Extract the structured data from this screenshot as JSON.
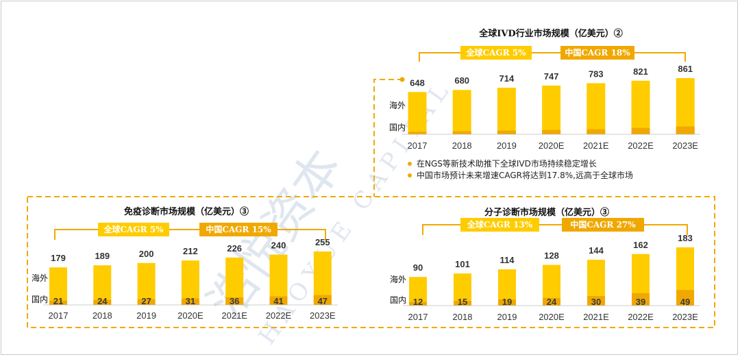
{
  "colors": {
    "bar_overseas": "#FFCC00",
    "bar_domestic": "#F0A800",
    "cagr_global_box": "#FFCC00",
    "cagr_china_box": "#F0A800",
    "bracket_line": "#F0A800",
    "dashed_frame": "#F0A800"
  },
  "legend": {
    "overseas": "海外",
    "domestic": "国内"
  },
  "notes": [
    "在NGS等新技术助推下全球IVD市场持续稳定增长",
    "中国市场预计未来增速CAGR将达到17.8%,远高于全球市场"
  ],
  "watermark": {
    "cn": "浩悦资本",
    "en": "HAOYUE CAPITAL"
  },
  "chart_data": [
    {
      "id": "ivd",
      "type": "bar",
      "title": "全球IVD行业市场规模（亿美元）②",
      "categories": [
        "2017",
        "2018",
        "2019",
        "2020E",
        "2021E",
        "2022E",
        "2023E"
      ],
      "totals": [
        648,
        680,
        714,
        747,
        783,
        821,
        861
      ],
      "domestic": [
        null,
        null,
        null,
        null,
        null,
        null,
        null
      ],
      "domestic_shown": [
        null,
        null,
        null,
        null,
        null,
        null,
        null
      ],
      "domestic_fraction": [
        0.06,
        0.07,
        0.08,
        0.09,
        0.1,
        0.12,
        0.14
      ],
      "cagr_global": "全球CAGR 5%",
      "cagr_china": "中国CAGR 18%"
    },
    {
      "id": "immuno",
      "type": "bar",
      "title": "免疫诊断市场规模（亿美元）③",
      "categories": [
        "2017",
        "2018",
        "2019",
        "2020E",
        "2021E",
        "2022E",
        "2023E"
      ],
      "totals": [
        179,
        189,
        200,
        212,
        226,
        240,
        255
      ],
      "domestic": [
        21,
        24,
        27,
        31,
        36,
        41,
        47
      ],
      "cagr_global": "全球CAGR 5%",
      "cagr_china": "中国CAGR 15%"
    },
    {
      "id": "molecular",
      "type": "bar",
      "title": "分子诊断市场规模（亿美元）③",
      "categories": [
        "2017",
        "2018",
        "2019",
        "2020E",
        "2021E",
        "2022E",
        "2023E"
      ],
      "totals": [
        90,
        101,
        114,
        128,
        144,
        162,
        183
      ],
      "domestic": [
        12,
        15,
        19,
        24,
        30,
        39,
        49
      ],
      "cagr_global": "全球CAGR 13%",
      "cagr_china": "中国CAGR 27%"
    }
  ]
}
